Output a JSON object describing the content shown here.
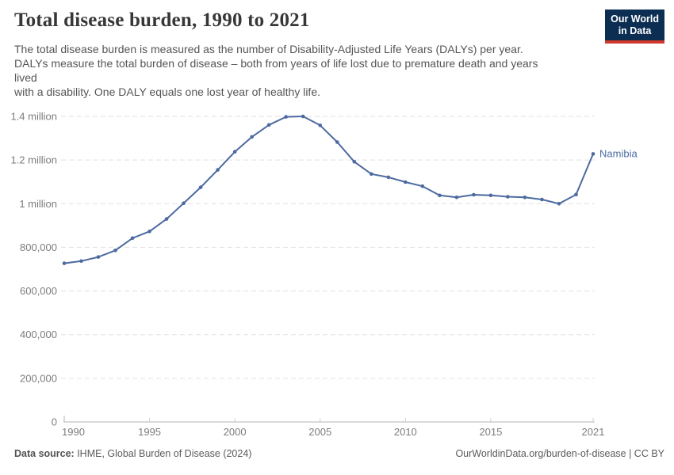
{
  "header": {
    "title": "Total disease burden, 1990 to 2021",
    "logo": {
      "line1": "Our World",
      "line2": "in Data"
    }
  },
  "subtitle": {
    "lines": [
      "The total disease burden is measured as the number of Disability-Adjusted Life Years (DALYs) per year.",
      "DALYs measure the total burden of disease – both from years of life lost due to premature death and years",
      "lived",
      "with a disability. One DALY equals one lost year of healthy life."
    ]
  },
  "chart_data": {
    "type": "line",
    "title": "Total disease burden, 1990 to 2021",
    "xlim": [
      1990,
      2021
    ],
    "ylim": [
      0,
      1400000
    ],
    "grid": "horizontal-dashed",
    "legend_position": "end-of-line-label",
    "categories": [
      1990,
      1991,
      1992,
      1993,
      1994,
      1995,
      1996,
      1997,
      1998,
      1999,
      2000,
      2001,
      2002,
      2003,
      2004,
      2005,
      2006,
      2007,
      2008,
      2009,
      2010,
      2011,
      2012,
      2013,
      2014,
      2015,
      2016,
      2017,
      2018,
      2019,
      2020,
      2021
    ],
    "series": [
      {
        "name": "Namibia",
        "values": [
          727000,
          737000,
          756000,
          786000,
          842000,
          873000,
          930000,
          1002000,
          1075000,
          1155000,
          1238000,
          1306000,
          1361000,
          1398000,
          1400000,
          1359000,
          1282000,
          1192000,
          1136000,
          1121000,
          1099000,
          1080000,
          1038000,
          1029000,
          1041000,
          1038000,
          1032000,
          1029000,
          1019000,
          1000000,
          1042000,
          1228000
        ]
      }
    ],
    "yticks": {
      "values": [
        0,
        200000,
        400000,
        600000,
        800000,
        1000000,
        1200000,
        1400000
      ],
      "labels": [
        "0",
        "200,000",
        "400,000",
        "600,000",
        "800,000",
        "1 million",
        "1.2 million",
        "1.4 million"
      ]
    },
    "xticks": {
      "values": [
        1990,
        1995,
        2000,
        2005,
        2010,
        2015,
        2021
      ],
      "labels": [
        "1990",
        "1995",
        "2000",
        "2005",
        "2010",
        "2015",
        "2021"
      ]
    }
  },
  "footer": {
    "source_label": "Data source:",
    "source_text": " IHME, Global Burden of Disease (2024)",
    "right_text": "OurWorldinData.org/burden-of-disease | CC BY"
  },
  "colors": {
    "line": "#4c6aa0",
    "end_label": "#4c6aa0",
    "gridline": "#e0e0e0",
    "axis": "#b3b3b3",
    "tick_text": "#7c7c7c",
    "logo_bg": "#0d2e53",
    "logo_accent": "#cf3a2d"
  }
}
